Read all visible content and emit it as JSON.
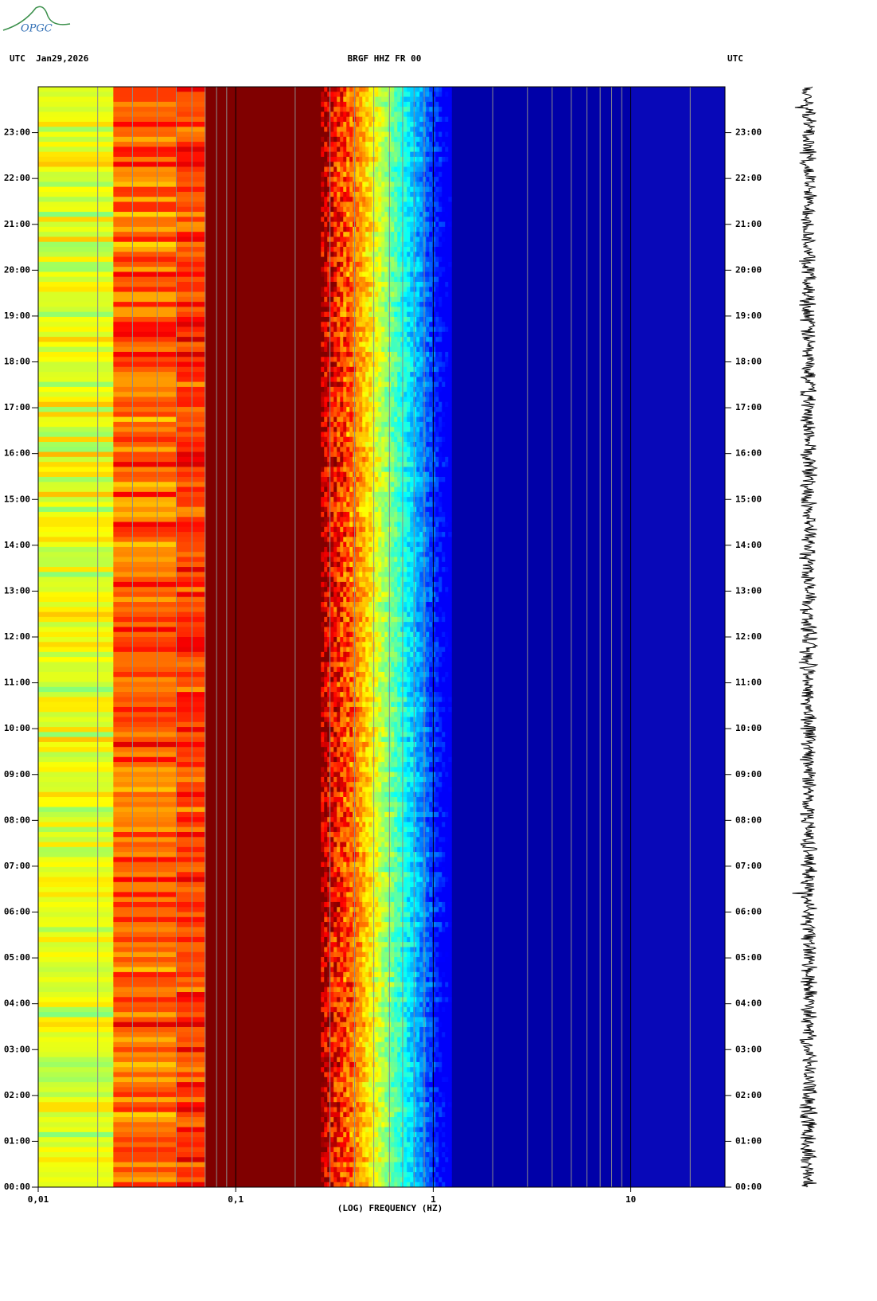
{
  "logo": "OPGC",
  "chart_data": {
    "type": "spectrogram",
    "title_left": "UTC  Jan29,2026",
    "title": "BRGF HHZ FR 00",
    "title_right": "UTC",
    "xlabel": "(LOG) FREQUENCY (HZ)",
    "xscale": "log",
    "xlim": [
      0.01,
      30
    ],
    "xticks": [
      {
        "value": 0.01,
        "label": "0,01"
      },
      {
        "value": 0.1,
        "label": "0,1"
      },
      1,
      10
    ],
    "xgrid_minor": [
      0.02,
      0.03,
      0.04,
      0.05,
      0.06,
      0.07,
      0.08,
      0.09,
      0.2,
      0.3,
      0.4,
      0.5,
      0.6,
      0.7,
      0.8,
      0.9,
      2,
      3,
      4,
      5,
      6,
      7,
      8,
      9,
      20
    ],
    "ylim": [
      0,
      24
    ],
    "yticks": [
      {
        "value": 0,
        "label": "00:00"
      },
      {
        "value": 1,
        "label": "01:00"
      },
      {
        "value": 2,
        "label": "02:00"
      },
      {
        "value": 3,
        "label": "03:00"
      },
      {
        "value": 4,
        "label": "04:00"
      },
      {
        "value": 5,
        "label": "05:00"
      },
      {
        "value": 6,
        "label": "06:00"
      },
      {
        "value": 7,
        "label": "07:00"
      },
      {
        "value": 8,
        "label": "08:00"
      },
      {
        "value": 9,
        "label": "09:00"
      },
      {
        "value": 10,
        "label": "10:00"
      },
      {
        "value": 11,
        "label": "11:00"
      },
      {
        "value": 12,
        "label": "12:00"
      },
      {
        "value": 13,
        "label": "13:00"
      },
      {
        "value": 14,
        "label": "14:00"
      },
      {
        "value": 15,
        "label": "15:00"
      },
      {
        "value": 16,
        "label": "16:00"
      },
      {
        "value": 17,
        "label": "17:00"
      },
      {
        "value": 18,
        "label": "18:00"
      },
      {
        "value": 19,
        "label": "19:00"
      },
      {
        "value": 20,
        "label": "20:00"
      },
      {
        "value": 21,
        "label": "21:00"
      },
      {
        "value": 22,
        "label": "22:00"
      },
      {
        "value": 23,
        "label": "23:00"
      }
    ]
  }
}
